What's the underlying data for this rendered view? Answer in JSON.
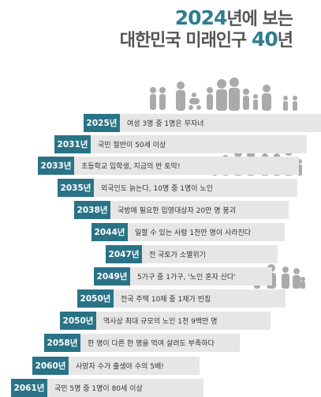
{
  "title": {
    "line1_highlight": "2024",
    "line1_rest": "년에 보는",
    "line2_rest": "대한민국 미래인구 ",
    "line2_highlight": "40",
    "line2_end": "년"
  },
  "colors": {
    "accent": "#2a7387",
    "row_bg": "#e6e6e6",
    "figure": "#aaaaaa"
  },
  "timeline": [
    {
      "year": "2025년",
      "text": "여성 3명 중 1명은 무자녀"
    },
    {
      "year": "2031년",
      "text": "국민 절반이 50세 이상"
    },
    {
      "year": "2033년",
      "text": "초등학교 입학생, 지금의 반 토막!"
    },
    {
      "year": "2035년",
      "text": "외국인도 늙는다, 10명 중 1명이 노인"
    },
    {
      "year": "2038년",
      "text": "국방에 필요한 입영대상자 20만 명 붕괴"
    },
    {
      "year": "2044년",
      "text": "일할 수 있는 사람 1천만 명이 사라진다"
    },
    {
      "year": "2047년",
      "text": "전 국토가 소멸위기"
    },
    {
      "year": "2049년",
      "text": "5가구 중 1가구, '노인 혼자 산다'"
    },
    {
      "year": "2050년",
      "text": "전국 주택 10채 중 1채가 빈집"
    },
    {
      "year": "2050년",
      "text": "역사상 최대 규모의 노인 1천 9백만 명"
    },
    {
      "year": "2058년",
      "text": "한 명이 다른 한 명을 먹여 살려도 부족하다"
    },
    {
      "year": "2060년",
      "text": "사망자 수가 출생아 수의 5배!"
    },
    {
      "year": "2061년",
      "text": "국민 5명 중 1명이 80세 이상"
    }
  ]
}
